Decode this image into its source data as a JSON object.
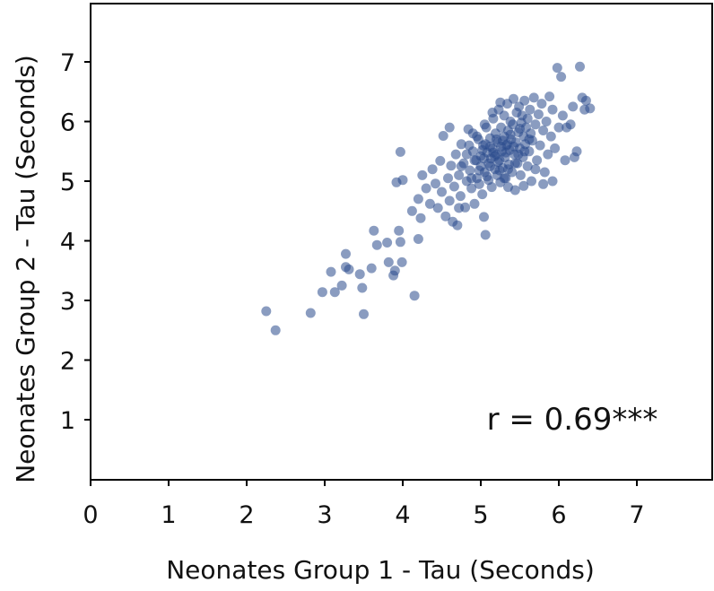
{
  "chart_data": {
    "type": "scatter",
    "title": "",
    "xlabel": "Neonates Group 1 - Tau (Seconds)",
    "ylabel": "Neonates Group 2 - Tau (Seconds)",
    "xlim": [
      0,
      8
    ],
    "ylim": [
      0,
      8
    ],
    "xticks": [
      "0",
      "1",
      "2",
      "3",
      "4",
      "5",
      "6",
      "7"
    ],
    "yticks": [
      "1",
      "2",
      "3",
      "4",
      "5",
      "6",
      "7"
    ],
    "annotation": "r = 0.69***",
    "grid": false,
    "marker_color": "#2a4a8c",
    "series": [
      {
        "points": [
          [
            2.25,
            2.82
          ],
          [
            2.37,
            2.5
          ],
          [
            2.82,
            2.79
          ],
          [
            2.97,
            3.14
          ],
          [
            3.08,
            3.48
          ],
          [
            3.13,
            3.14
          ],
          [
            3.22,
            3.25
          ],
          [
            3.27,
            3.78
          ],
          [
            3.27,
            3.56
          ],
          [
            3.31,
            3.52
          ],
          [
            3.45,
            3.44
          ],
          [
            3.48,
            3.21
          ],
          [
            3.5,
            2.77
          ],
          [
            3.6,
            3.54
          ],
          [
            3.63,
            4.17
          ],
          [
            3.67,
            3.93
          ],
          [
            3.8,
            3.97
          ],
          [
            3.82,
            3.64
          ],
          [
            3.88,
            3.42
          ],
          [
            3.9,
            3.5
          ],
          [
            3.95,
            4.17
          ],
          [
            3.99,
            3.64
          ],
          [
            3.97,
            3.98
          ],
          [
            4.15,
            3.08
          ],
          [
            4.2,
            4.03
          ],
          [
            4.23,
            4.38
          ],
          [
            3.92,
            4.98
          ],
          [
            3.97,
            5.49
          ],
          [
            4.0,
            5.02
          ],
          [
            4.12,
            4.5
          ],
          [
            4.2,
            4.7
          ],
          [
            4.25,
            5.1
          ],
          [
            4.3,
            4.88
          ],
          [
            4.35,
            4.62
          ],
          [
            4.38,
            5.2
          ],
          [
            4.42,
            4.96
          ],
          [
            4.45,
            4.55
          ],
          [
            4.48,
            5.34
          ],
          [
            4.5,
            4.82
          ],
          [
            4.52,
            5.76
          ],
          [
            4.55,
            4.41
          ],
          [
            4.58,
            5.05
          ],
          [
            4.6,
            4.67
          ],
          [
            4.62,
            5.26
          ],
          [
            4.64,
            4.32
          ],
          [
            4.66,
            4.91
          ],
          [
            4.68,
            5.45
          ],
          [
            4.7,
            4.26
          ],
          [
            4.72,
            5.1
          ],
          [
            4.74,
            4.75
          ],
          [
            4.75,
            5.62
          ],
          [
            4.78,
            5.3
          ],
          [
            4.8,
            4.56
          ],
          [
            4.82,
            5.0
          ],
          [
            4.84,
            5.87
          ],
          [
            4.86,
            5.18
          ],
          [
            4.88,
            4.88
          ],
          [
            4.9,
            5.5
          ],
          [
            4.9,
            5.8
          ],
          [
            4.92,
            4.62
          ],
          [
            4.94,
            5.35
          ],
          [
            4.95,
            5.05
          ],
          [
            4.97,
            5.7
          ],
          [
            4.98,
            4.95
          ],
          [
            5.0,
            5.42
          ],
          [
            5.0,
            5.25
          ],
          [
            5.02,
            4.78
          ],
          [
            5.03,
            5.6
          ],
          [
            5.04,
            4.4
          ],
          [
            5.05,
            5.15
          ],
          [
            5.06,
            4.1
          ],
          [
            5.07,
            5.9
          ],
          [
            5.08,
            5.48
          ],
          [
            5.1,
            5.3
          ],
          [
            5.1,
            5.02
          ],
          [
            5.12,
            5.72
          ],
          [
            5.13,
            5.38
          ],
          [
            5.14,
            4.9
          ],
          [
            5.15,
            5.55
          ],
          [
            5.16,
            6.05
          ],
          [
            5.18,
            5.2
          ],
          [
            5.19,
            5.8
          ],
          [
            5.2,
            5.45
          ],
          [
            5.21,
            5.1
          ],
          [
            5.22,
            5.65
          ],
          [
            5.23,
            6.2
          ],
          [
            5.24,
            5.35
          ],
          [
            5.25,
            4.98
          ],
          [
            5.26,
            5.9
          ],
          [
            5.27,
            5.5
          ],
          [
            5.28,
            5.22
          ],
          [
            5.3,
            5.75
          ],
          [
            5.3,
            6.1
          ],
          [
            5.31,
            5.4
          ],
          [
            5.32,
            5.05
          ],
          [
            5.33,
            5.6
          ],
          [
            5.34,
            6.3
          ],
          [
            5.35,
            5.85
          ],
          [
            5.36,
            5.28
          ],
          [
            5.37,
            5.52
          ],
          [
            5.38,
            6.0
          ],
          [
            5.39,
            5.7
          ],
          [
            5.4,
            5.15
          ],
          [
            5.41,
            5.95
          ],
          [
            5.42,
            6.38
          ],
          [
            5.43,
            5.45
          ],
          [
            5.44,
            4.85
          ],
          [
            5.45,
            5.65
          ],
          [
            5.46,
            6.15
          ],
          [
            5.47,
            5.3
          ],
          [
            5.48,
            5.82
          ],
          [
            5.49,
            6.25
          ],
          [
            5.5,
            5.55
          ],
          [
            5.51,
            5.1
          ],
          [
            5.52,
            5.98
          ],
          [
            5.53,
            6.1
          ],
          [
            5.54,
            5.4
          ],
          [
            5.55,
            5.75
          ],
          [
            5.56,
            6.35
          ],
          [
            5.57,
            5.62
          ],
          [
            5.58,
            5.9
          ],
          [
            5.6,
            5.25
          ],
          [
            5.6,
            6.05
          ],
          [
            5.62,
            5.5
          ],
          [
            5.63,
            6.2
          ],
          [
            5.64,
            5.8
          ],
          [
            5.65,
            5.0
          ],
          [
            5.66,
            5.68
          ],
          [
            5.68,
            6.4
          ],
          [
            5.7,
            5.95
          ],
          [
            5.72,
            5.35
          ],
          [
            5.74,
            6.12
          ],
          [
            5.76,
            5.6
          ],
          [
            5.78,
            6.3
          ],
          [
            5.8,
            5.85
          ],
          [
            5.82,
            5.15
          ],
          [
            5.84,
            6.0
          ],
          [
            5.86,
            5.45
          ],
          [
            5.88,
            6.42
          ],
          [
            5.9,
            5.75
          ],
          [
            5.92,
            6.2
          ],
          [
            5.95,
            5.55
          ],
          [
            5.98,
            6.9
          ],
          [
            6.0,
            5.9
          ],
          [
            6.03,
            6.75
          ],
          [
            6.05,
            6.1
          ],
          [
            6.08,
            5.35
          ],
          [
            6.1,
            5.9
          ],
          [
            6.15,
            5.95
          ],
          [
            6.18,
            6.25
          ],
          [
            6.2,
            5.4
          ],
          [
            6.23,
            5.5
          ],
          [
            6.27,
            6.92
          ],
          [
            6.3,
            6.4
          ],
          [
            6.33,
            6.2
          ],
          [
            6.35,
            6.35
          ],
          [
            6.4,
            6.22
          ],
          [
            5.92,
            5.0
          ],
          [
            5.8,
            4.95
          ],
          [
            5.55,
            4.92
          ],
          [
            5.35,
            4.9
          ],
          [
            4.72,
            4.55
          ],
          [
            4.85,
            5.6
          ],
          [
            4.95,
            5.75
          ],
          [
            5.15,
            6.15
          ],
          [
            5.25,
            6.32
          ],
          [
            5.05,
            5.95
          ],
          [
            4.6,
            5.9
          ],
          [
            4.75,
            5.25
          ],
          [
            4.88,
            5.05
          ],
          [
            5.12,
            5.58
          ],
          [
            5.28,
            5.68
          ],
          [
            5.42,
            5.58
          ],
          [
            5.02,
            5.52
          ],
          [
            5.18,
            5.42
          ],
          [
            5.32,
            5.48
          ],
          [
            4.98,
            5.18
          ],
          [
            5.22,
            5.32
          ],
          [
            5.48,
            5.45
          ],
          [
            5.62,
            5.7
          ],
          [
            5.35,
            5.2
          ],
          [
            5.12,
            5.25
          ],
          [
            4.92,
            5.35
          ],
          [
            5.06,
            5.62
          ],
          [
            5.38,
            5.78
          ],
          [
            5.56,
            5.5
          ],
          [
            5.26,
            5.58
          ],
          [
            5.44,
            5.3
          ],
          [
            5.2,
            5.7
          ],
          [
            5.08,
            5.08
          ],
          [
            5.3,
            5.05
          ],
          [
            4.82,
            5.45
          ],
          [
            5.5,
            5.88
          ],
          [
            5.7,
            5.2
          ],
          [
            5.16,
            5.48
          ],
          [
            5.34,
            5.62
          ],
          [
            5.04,
            5.38
          ],
          [
            5.24,
            5.18
          ]
        ]
      }
    ]
  }
}
